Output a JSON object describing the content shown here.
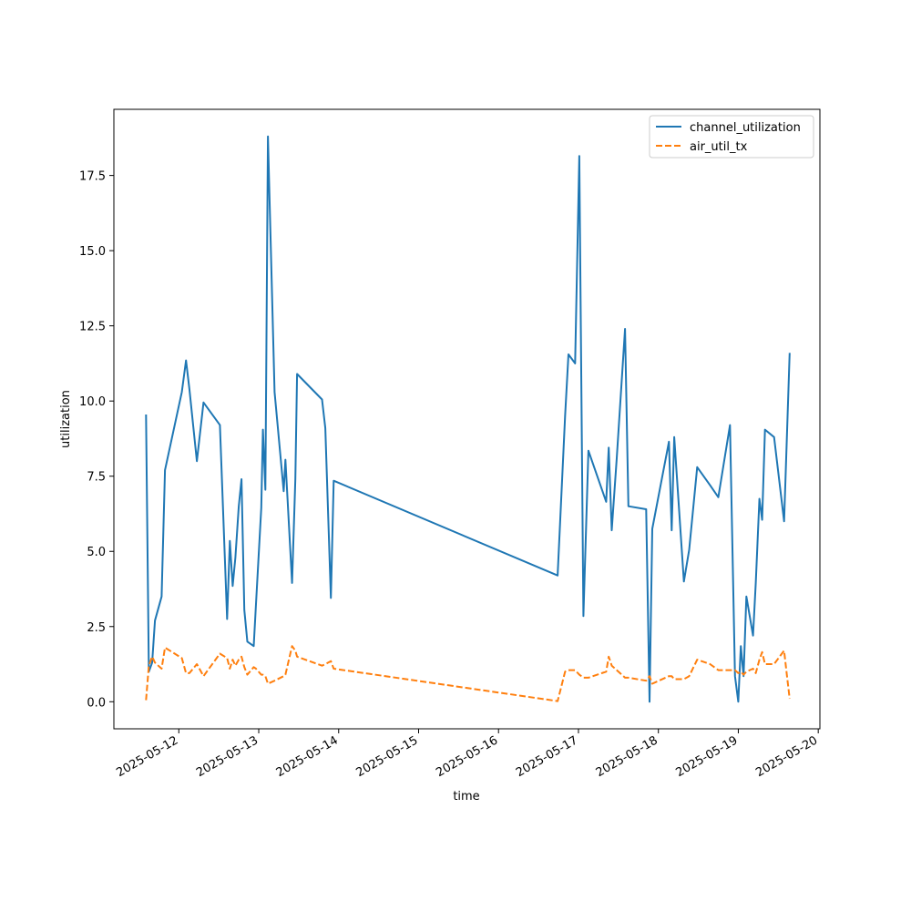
{
  "chart_data": {
    "type": "line",
    "title": "",
    "xlabel": "time",
    "ylabel": "utilization",
    "xlim": [
      "2025-05-11T04:30",
      "2025-05-20T00:30"
    ],
    "ylim": [
      -0.9,
      19.7
    ],
    "x_ticks": [
      "2025-05-12",
      "2025-05-13",
      "2025-05-14",
      "2025-05-15",
      "2025-05-16",
      "2025-05-17",
      "2025-05-18",
      "2025-05-19",
      "2025-05-20"
    ],
    "y_ticks": [
      "0.0",
      "2.5",
      "5.0",
      "7.5",
      "10.0",
      "12.5",
      "15.0",
      "17.5"
    ],
    "grid": false,
    "legend_position": "top-right",
    "series": [
      {
        "name": "channel_utilization",
        "color": "#1f77b4",
        "dash": "solid",
        "points": [
          [
            "2025-05-11T14:10",
            9.55
          ],
          [
            "2025-05-11T15:00",
            1.0
          ],
          [
            "2025-05-11T16:00",
            1.3
          ],
          [
            "2025-05-11T16:50",
            2.7
          ],
          [
            "2025-05-11T18:50",
            3.5
          ],
          [
            "2025-05-11T19:50",
            7.7
          ],
          [
            "2025-05-12T00:55",
            10.3
          ],
          [
            "2025-05-12T02:10",
            11.35
          ],
          [
            "2025-05-12T03:10",
            10.4
          ],
          [
            "2025-05-12T05:25",
            8.0
          ],
          [
            "2025-05-12T07:25",
            9.95
          ],
          [
            "2025-05-12T12:20",
            9.2
          ],
          [
            "2025-05-12T14:30",
            2.75
          ],
          [
            "2025-05-12T15:20",
            5.35
          ],
          [
            "2025-05-12T16:10",
            3.85
          ],
          [
            "2025-05-12T17:00",
            4.8
          ],
          [
            "2025-05-12T18:00",
            6.5
          ],
          [
            "2025-05-12T18:50",
            7.4
          ],
          [
            "2025-05-12T19:40",
            3.05
          ],
          [
            "2025-05-12T20:35",
            2.0
          ],
          [
            "2025-05-12T22:30",
            1.85
          ],
          [
            "2025-05-12T23:10",
            3.25
          ],
          [
            "2025-05-13T00:45",
            6.45
          ],
          [
            "2025-05-13T01:15",
            9.05
          ],
          [
            "2025-05-13T02:00",
            7.05
          ],
          [
            "2025-05-13T02:45",
            18.8
          ],
          [
            "2025-05-13T04:45",
            10.3
          ],
          [
            "2025-05-13T07:30",
            7.0
          ],
          [
            "2025-05-13T08:00",
            8.05
          ],
          [
            "2025-05-13T10:00",
            3.95
          ],
          [
            "2025-05-13T11:00",
            7.4
          ],
          [
            "2025-05-13T11:30",
            10.9
          ],
          [
            "2025-05-13T19:00",
            10.05
          ],
          [
            "2025-05-13T20:00",
            9.1
          ],
          [
            "2025-05-13T21:40",
            3.45
          ],
          [
            "2025-05-13T22:30",
            7.35
          ],
          [
            "2025-05-16T17:45",
            4.2
          ],
          [
            "2025-05-16T20:00",
            9.5
          ],
          [
            "2025-05-16T21:00",
            11.55
          ],
          [
            "2025-05-16T23:00",
            11.25
          ],
          [
            "2025-05-17T00:15",
            18.15
          ],
          [
            "2025-05-17T01:30",
            2.85
          ],
          [
            "2025-05-17T03:00",
            8.35
          ],
          [
            "2025-05-17T08:20",
            6.65
          ],
          [
            "2025-05-17T09:05",
            8.45
          ],
          [
            "2025-05-17T10:00",
            5.7
          ],
          [
            "2025-05-17T11:30",
            8.1
          ],
          [
            "2025-05-17T14:00",
            12.4
          ],
          [
            "2025-05-17T15:00",
            6.5
          ],
          [
            "2025-05-17T20:20",
            6.4
          ],
          [
            "2025-05-17T21:20",
            0.0
          ],
          [
            "2025-05-17T22:10",
            5.75
          ],
          [
            "2025-05-18T03:10",
            8.65
          ],
          [
            "2025-05-18T04:00",
            5.7
          ],
          [
            "2025-05-18T04:45",
            8.8
          ],
          [
            "2025-05-18T07:40",
            4.0
          ],
          [
            "2025-05-18T09:15",
            5.05
          ],
          [
            "2025-05-18T11:40",
            7.8
          ],
          [
            "2025-05-18T15:30",
            7.2
          ],
          [
            "2025-05-18T18:00",
            6.8
          ],
          [
            "2025-05-18T21:30",
            9.2
          ],
          [
            "2025-05-18T23:00",
            0.85
          ],
          [
            "2025-05-19T00:00",
            0.0
          ],
          [
            "2025-05-19T00:45",
            1.85
          ],
          [
            "2025-05-19T01:35",
            0.85
          ],
          [
            "2025-05-19T02:25",
            3.5
          ],
          [
            "2025-05-19T04:25",
            2.2
          ],
          [
            "2025-05-19T05:15",
            3.95
          ],
          [
            "2025-05-19T06:20",
            6.75
          ],
          [
            "2025-05-19T07:10",
            6.05
          ],
          [
            "2025-05-19T08:00",
            9.05
          ],
          [
            "2025-05-19T10:45",
            8.8
          ],
          [
            "2025-05-19T13:45",
            6.0
          ],
          [
            "2025-05-19T14:35",
            8.75
          ],
          [
            "2025-05-19T15:25",
            11.6
          ]
        ]
      },
      {
        "name": "air_util_tx",
        "color": "#ff7f0e",
        "dash": "dashed",
        "points": [
          [
            "2025-05-11T14:10",
            0.05
          ],
          [
            "2025-05-11T15:00",
            1.2
          ],
          [
            "2025-05-11T16:00",
            1.5
          ],
          [
            "2025-05-11T16:50",
            1.3
          ],
          [
            "2025-05-11T18:50",
            1.1
          ],
          [
            "2025-05-11T19:50",
            1.8
          ],
          [
            "2025-05-12T00:55",
            1.45
          ],
          [
            "2025-05-12T02:10",
            0.95
          ],
          [
            "2025-05-12T03:10",
            0.95
          ],
          [
            "2025-05-12T05:25",
            1.25
          ],
          [
            "2025-05-12T07:25",
            0.85
          ],
          [
            "2025-05-12T12:20",
            1.6
          ],
          [
            "2025-05-12T14:30",
            1.45
          ],
          [
            "2025-05-12T15:20",
            1.1
          ],
          [
            "2025-05-12T16:10",
            1.4
          ],
          [
            "2025-05-12T17:00",
            1.2
          ],
          [
            "2025-05-12T18:00",
            1.4
          ],
          [
            "2025-05-12T18:50",
            1.5
          ],
          [
            "2025-05-12T19:40",
            1.15
          ],
          [
            "2025-05-12T20:35",
            0.9
          ],
          [
            "2025-05-12T22:30",
            1.15
          ],
          [
            "2025-05-12T23:10",
            1.1
          ],
          [
            "2025-05-13T00:45",
            0.9
          ],
          [
            "2025-05-13T01:15",
            0.9
          ],
          [
            "2025-05-13T02:00",
            0.85
          ],
          [
            "2025-05-13T02:45",
            0.6
          ],
          [
            "2025-05-13T04:45",
            0.7
          ],
          [
            "2025-05-13T07:30",
            0.85
          ],
          [
            "2025-05-13T08:00",
            0.9
          ],
          [
            "2025-05-13T10:00",
            1.85
          ],
          [
            "2025-05-13T11:00",
            1.7
          ],
          [
            "2025-05-13T11:30",
            1.5
          ],
          [
            "2025-05-13T19:00",
            1.2
          ],
          [
            "2025-05-13T20:00",
            1.25
          ],
          [
            "2025-05-13T21:40",
            1.35
          ],
          [
            "2025-05-13T22:30",
            1.1
          ],
          [
            "2025-05-16T17:45",
            0.02
          ],
          [
            "2025-05-16T20:00",
            1.0
          ],
          [
            "2025-05-16T21:00",
            1.05
          ],
          [
            "2025-05-16T23:00",
            1.05
          ],
          [
            "2025-05-17T00:15",
            0.9
          ],
          [
            "2025-05-17T01:30",
            0.8
          ],
          [
            "2025-05-17T03:00",
            0.8
          ],
          [
            "2025-05-17T08:20",
            1.0
          ],
          [
            "2025-05-17T09:05",
            1.5
          ],
          [
            "2025-05-17T10:00",
            1.2
          ],
          [
            "2025-05-17T11:30",
            1.05
          ],
          [
            "2025-05-17T14:00",
            0.8
          ],
          [
            "2025-05-17T15:00",
            0.8
          ],
          [
            "2025-05-17T20:20",
            0.7
          ],
          [
            "2025-05-17T21:20",
            0.85
          ],
          [
            "2025-05-17T22:10",
            0.6
          ],
          [
            "2025-05-18T03:10",
            0.85
          ],
          [
            "2025-05-18T04:00",
            0.85
          ],
          [
            "2025-05-18T04:45",
            0.75
          ],
          [
            "2025-05-18T07:40",
            0.75
          ],
          [
            "2025-05-18T09:15",
            0.85
          ],
          [
            "2025-05-18T11:40",
            1.4
          ],
          [
            "2025-05-18T15:30",
            1.25
          ],
          [
            "2025-05-18T18:00",
            1.05
          ],
          [
            "2025-05-18T21:30",
            1.05
          ],
          [
            "2025-05-18T23:00",
            1.05
          ],
          [
            "2025-05-19T00:00",
            0.95
          ],
          [
            "2025-05-19T00:45",
            1.0
          ],
          [
            "2025-05-19T01:35",
            0.9
          ],
          [
            "2025-05-19T02:25",
            1.0
          ],
          [
            "2025-05-19T04:25",
            1.1
          ],
          [
            "2025-05-19T05:15",
            0.95
          ],
          [
            "2025-05-19T06:20",
            1.4
          ],
          [
            "2025-05-19T07:10",
            1.65
          ],
          [
            "2025-05-19T08:00",
            1.25
          ],
          [
            "2025-05-19T10:45",
            1.25
          ],
          [
            "2025-05-19T13:45",
            1.7
          ],
          [
            "2025-05-19T14:35",
            0.9
          ],
          [
            "2025-05-19T15:25",
            0.1
          ]
        ]
      }
    ]
  }
}
